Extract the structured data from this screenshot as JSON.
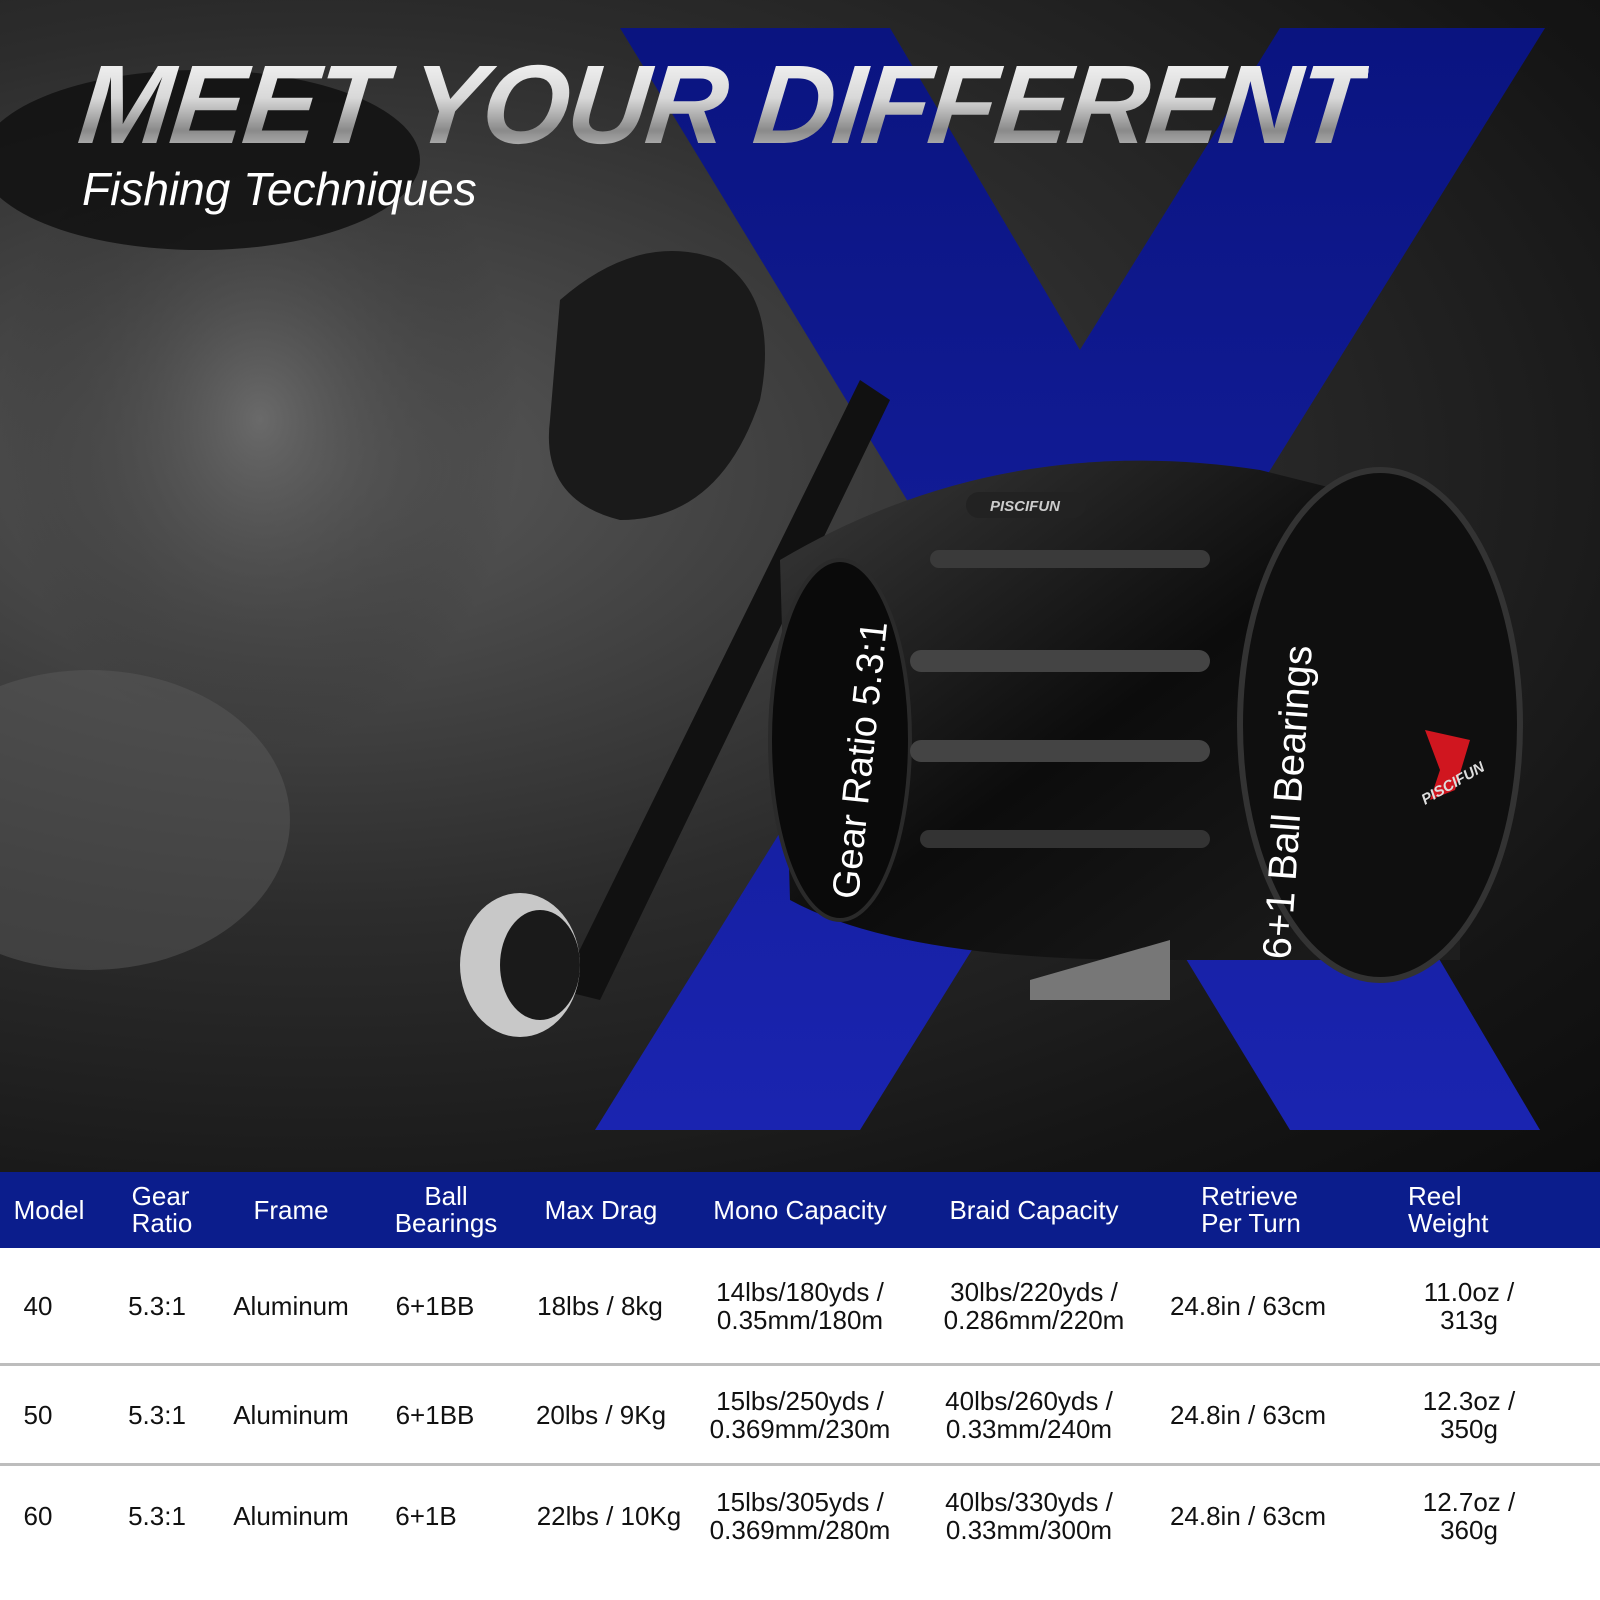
{
  "hero": {
    "title": "MEET YOUR DIFFERENT",
    "subtitle": "Fishing Techniques",
    "reel_labels": {
      "brand": "PISCIFUN",
      "gear_ratio": "Gear Ratio 5.3:1",
      "ball_bearings": "6+1 Ball Bearings"
    },
    "colors": {
      "accent_blue": "#0b1d8c",
      "logo_red": "#d0161f"
    }
  },
  "table": {
    "headers": [
      "Model",
      "Gear\nRatio",
      "Frame",
      "Ball\nBearings",
      "Max Drag",
      "Mono Capacity",
      "Braid Capacity",
      "Retrieve\nPer Turn",
      "Reel Weight"
    ],
    "rows": [
      [
        "40",
        "5.3:1",
        "Aluminum",
        "6+1BB",
        "18lbs / 8kg",
        "14lbs/180yds /\n0.35mm/180m",
        "30lbs/220yds /\n0.286mm/220m",
        "24.8in / 63cm",
        "11.0oz / 313g"
      ],
      [
        "50",
        "5.3:1",
        "Aluminum",
        "6+1BB",
        "20lbs / 9Kg",
        "15lbs/250yds /\n0.369mm/230m",
        "40lbs/260yds /\n0.33mm/240m",
        "24.8in / 63cm",
        "12.3oz / 350g"
      ],
      [
        "60",
        "5.3:1",
        "Aluminum",
        "6+1B",
        "22lbs / 10Kg",
        "15lbs/305yds /\n0.369mm/280m",
        "40lbs/330yds /\n0.33mm/300m",
        "24.8in / 63cm",
        "12.7oz / 360g"
      ]
    ]
  }
}
